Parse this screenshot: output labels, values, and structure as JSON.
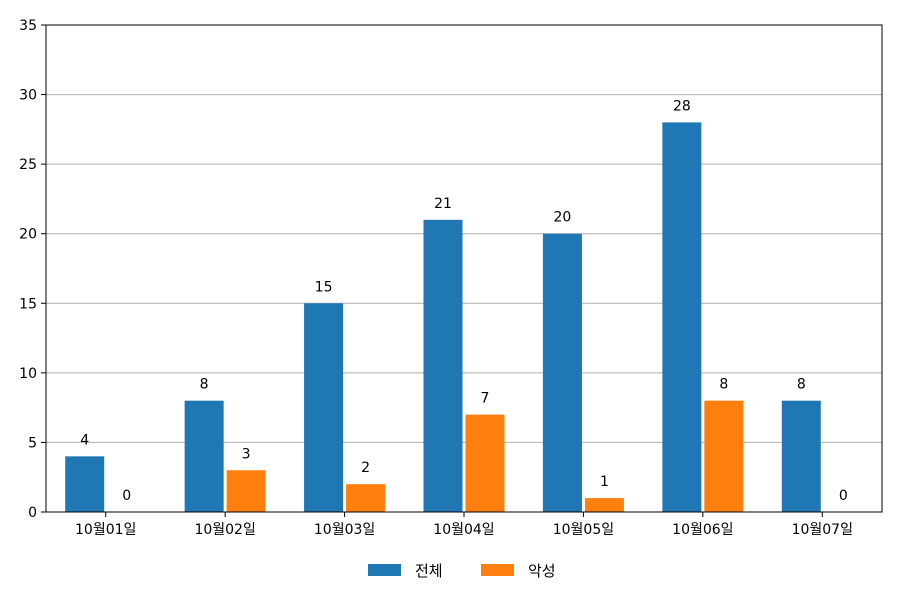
{
  "chart_data": {
    "type": "bar",
    "categories": [
      "10월01일",
      "10월02일",
      "10월03일",
      "10월04일",
      "10월05일",
      "10월06일",
      "10월07일"
    ],
    "series": [
      {
        "name": "전체",
        "color": "#1f77b4",
        "values": [
          4,
          8,
          15,
          21,
          20,
          28,
          8
        ]
      },
      {
        "name": "악성",
        "color": "#ff7f0e",
        "values": [
          0,
          3,
          2,
          7,
          1,
          8,
          0
        ]
      }
    ],
    "ylim": [
      0,
      35
    ],
    "yticks": [
      0,
      5,
      10,
      15,
      20,
      25,
      30,
      35
    ],
    "grid": "horizontal",
    "legend_position": "bottom-center",
    "data_labels": true
  }
}
